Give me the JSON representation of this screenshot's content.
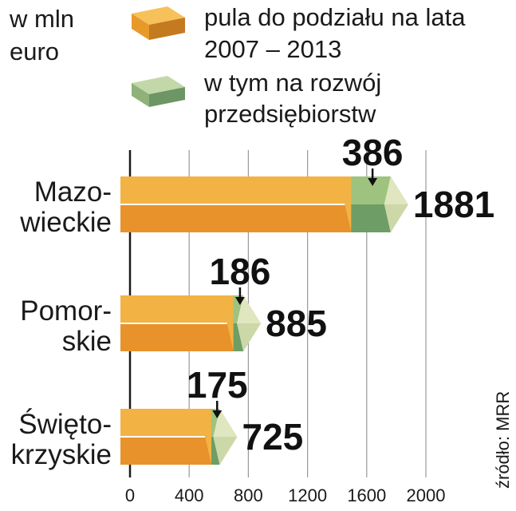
{
  "chart_data": {
    "type": "bar",
    "unit_label": [
      "w mln",
      "euro"
    ],
    "categories": [
      [
        "Mazo-",
        "wieckie"
      ],
      [
        "Pomor-",
        "skie"
      ],
      [
        "Święto-",
        "krzyskie"
      ]
    ],
    "series": [
      {
        "name": [
          "pula do podziału na lata",
          "2007 – 2013"
        ],
        "values": [
          1881,
          885,
          725
        ]
      },
      {
        "name": [
          "w tym na rozwój",
          "przedsiębiorstw"
        ],
        "values": [
          386,
          186,
          175
        ]
      }
    ],
    "total_labels": [
      "1881",
      "885",
      "725"
    ],
    "part_labels": [
      "386",
      "186",
      "175"
    ],
    "x_ticks": [
      "0",
      "400",
      "800",
      "1200",
      "1600",
      "2000"
    ],
    "x_tick_values": [
      0,
      400,
      800,
      1200,
      1600,
      2000
    ],
    "xlim": [
      0,
      2000
    ],
    "source": "źródło: MRR",
    "colors": {
      "total_top": "#f2b344",
      "total_bottom": "#e8922c",
      "part_top": "#9ec37f",
      "part_bottom": "#6e9d66",
      "cap_light": "#dfe6c0",
      "cap_dark": "#bfcf98",
      "legend_top": "#f7c15a",
      "legend_bottom": "#e79a2a",
      "legend_side": "#c47a1e",
      "legend2_top": "#c3d8a8",
      "legend2_bottom": "#8fb27b",
      "legend2_side": "#6e9566",
      "grid": "#9a9a9a",
      "axis": "#1a1a1a"
    }
  }
}
